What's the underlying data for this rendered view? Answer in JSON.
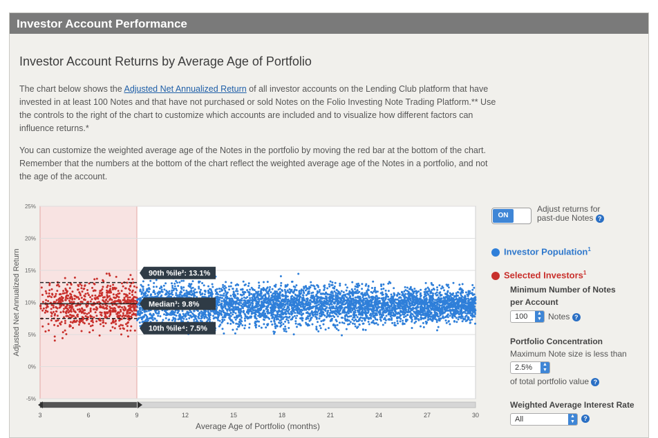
{
  "header": {
    "title": "Investor Account Performance"
  },
  "page": {
    "title": "Investor Account Returns by Average Age of Portfolio",
    "para1": {
      "before": "The chart below shows the ",
      "link": "Adjusted Net Annualized Return",
      "after": " of all investor accounts on the Lending Club platform that have invested in at least 100 Notes and that have not purchased or sold Notes on the Folio Investing Note Trading Platform.** Use the controls to the right of the chart to customize which accounts are included and to visualize how different factors can influence returns.*"
    },
    "para2": "You can customize the weighted average age of the Notes in the portfolio by moving the red bar at the bottom of the chart. Remember that the numbers at the bottom of the chart reflect the weighted average age of the Notes in a portfolio, and not the age of the account."
  },
  "chart_data": {
    "type": "scatter",
    "xlabel": "Average Age of Portfolio (months)",
    "ylabel": "Adjusted Net Annualized Return",
    "x_ticks": [
      "3",
      "6",
      "9",
      "12",
      "15",
      "18",
      "21",
      "24",
      "27",
      "30"
    ],
    "y_ticks": [
      "25%",
      "20%",
      "15%",
      "10%",
      "5%",
      "0%",
      "-5%"
    ],
    "xlim": [
      3,
      30
    ],
    "ylim": [
      -5,
      25
    ],
    "selected_range_months": [
      3,
      9
    ],
    "percentile_lines": {
      "p90": {
        "label": "90th %ile²: 13.1%",
        "value": 13.1
      },
      "median": {
        "label": "Median³: 9.8%",
        "value": 9.8
      },
      "p10": {
        "label": "10th %ile⁴: 7.5%",
        "value": 7.5
      }
    },
    "series": [
      {
        "name": "Investor Population",
        "color": "#2f7fd9"
      },
      {
        "name": "Selected Investors",
        "color": "#c8302c"
      }
    ]
  },
  "controls": {
    "toggle": {
      "state": "ON",
      "label": "Adjust returns for past-due Notes"
    },
    "legend": {
      "population": "Investor Population",
      "population_sup": "1",
      "selected": "Selected Investors",
      "selected_sup": "1"
    },
    "min_notes": {
      "label_line1": "Minimum Number of Notes",
      "label_line2": "per Account",
      "value": "100",
      "suffix": "Notes"
    },
    "concentration": {
      "label": "Portfolio Concentration",
      "sub": "Maximum Note size is less than",
      "value": "2.5%",
      "suffix": "of total portfolio value"
    },
    "interest_rate": {
      "label": "Weighted Average Interest Rate",
      "value": "All"
    },
    "help_glyph": "?"
  }
}
